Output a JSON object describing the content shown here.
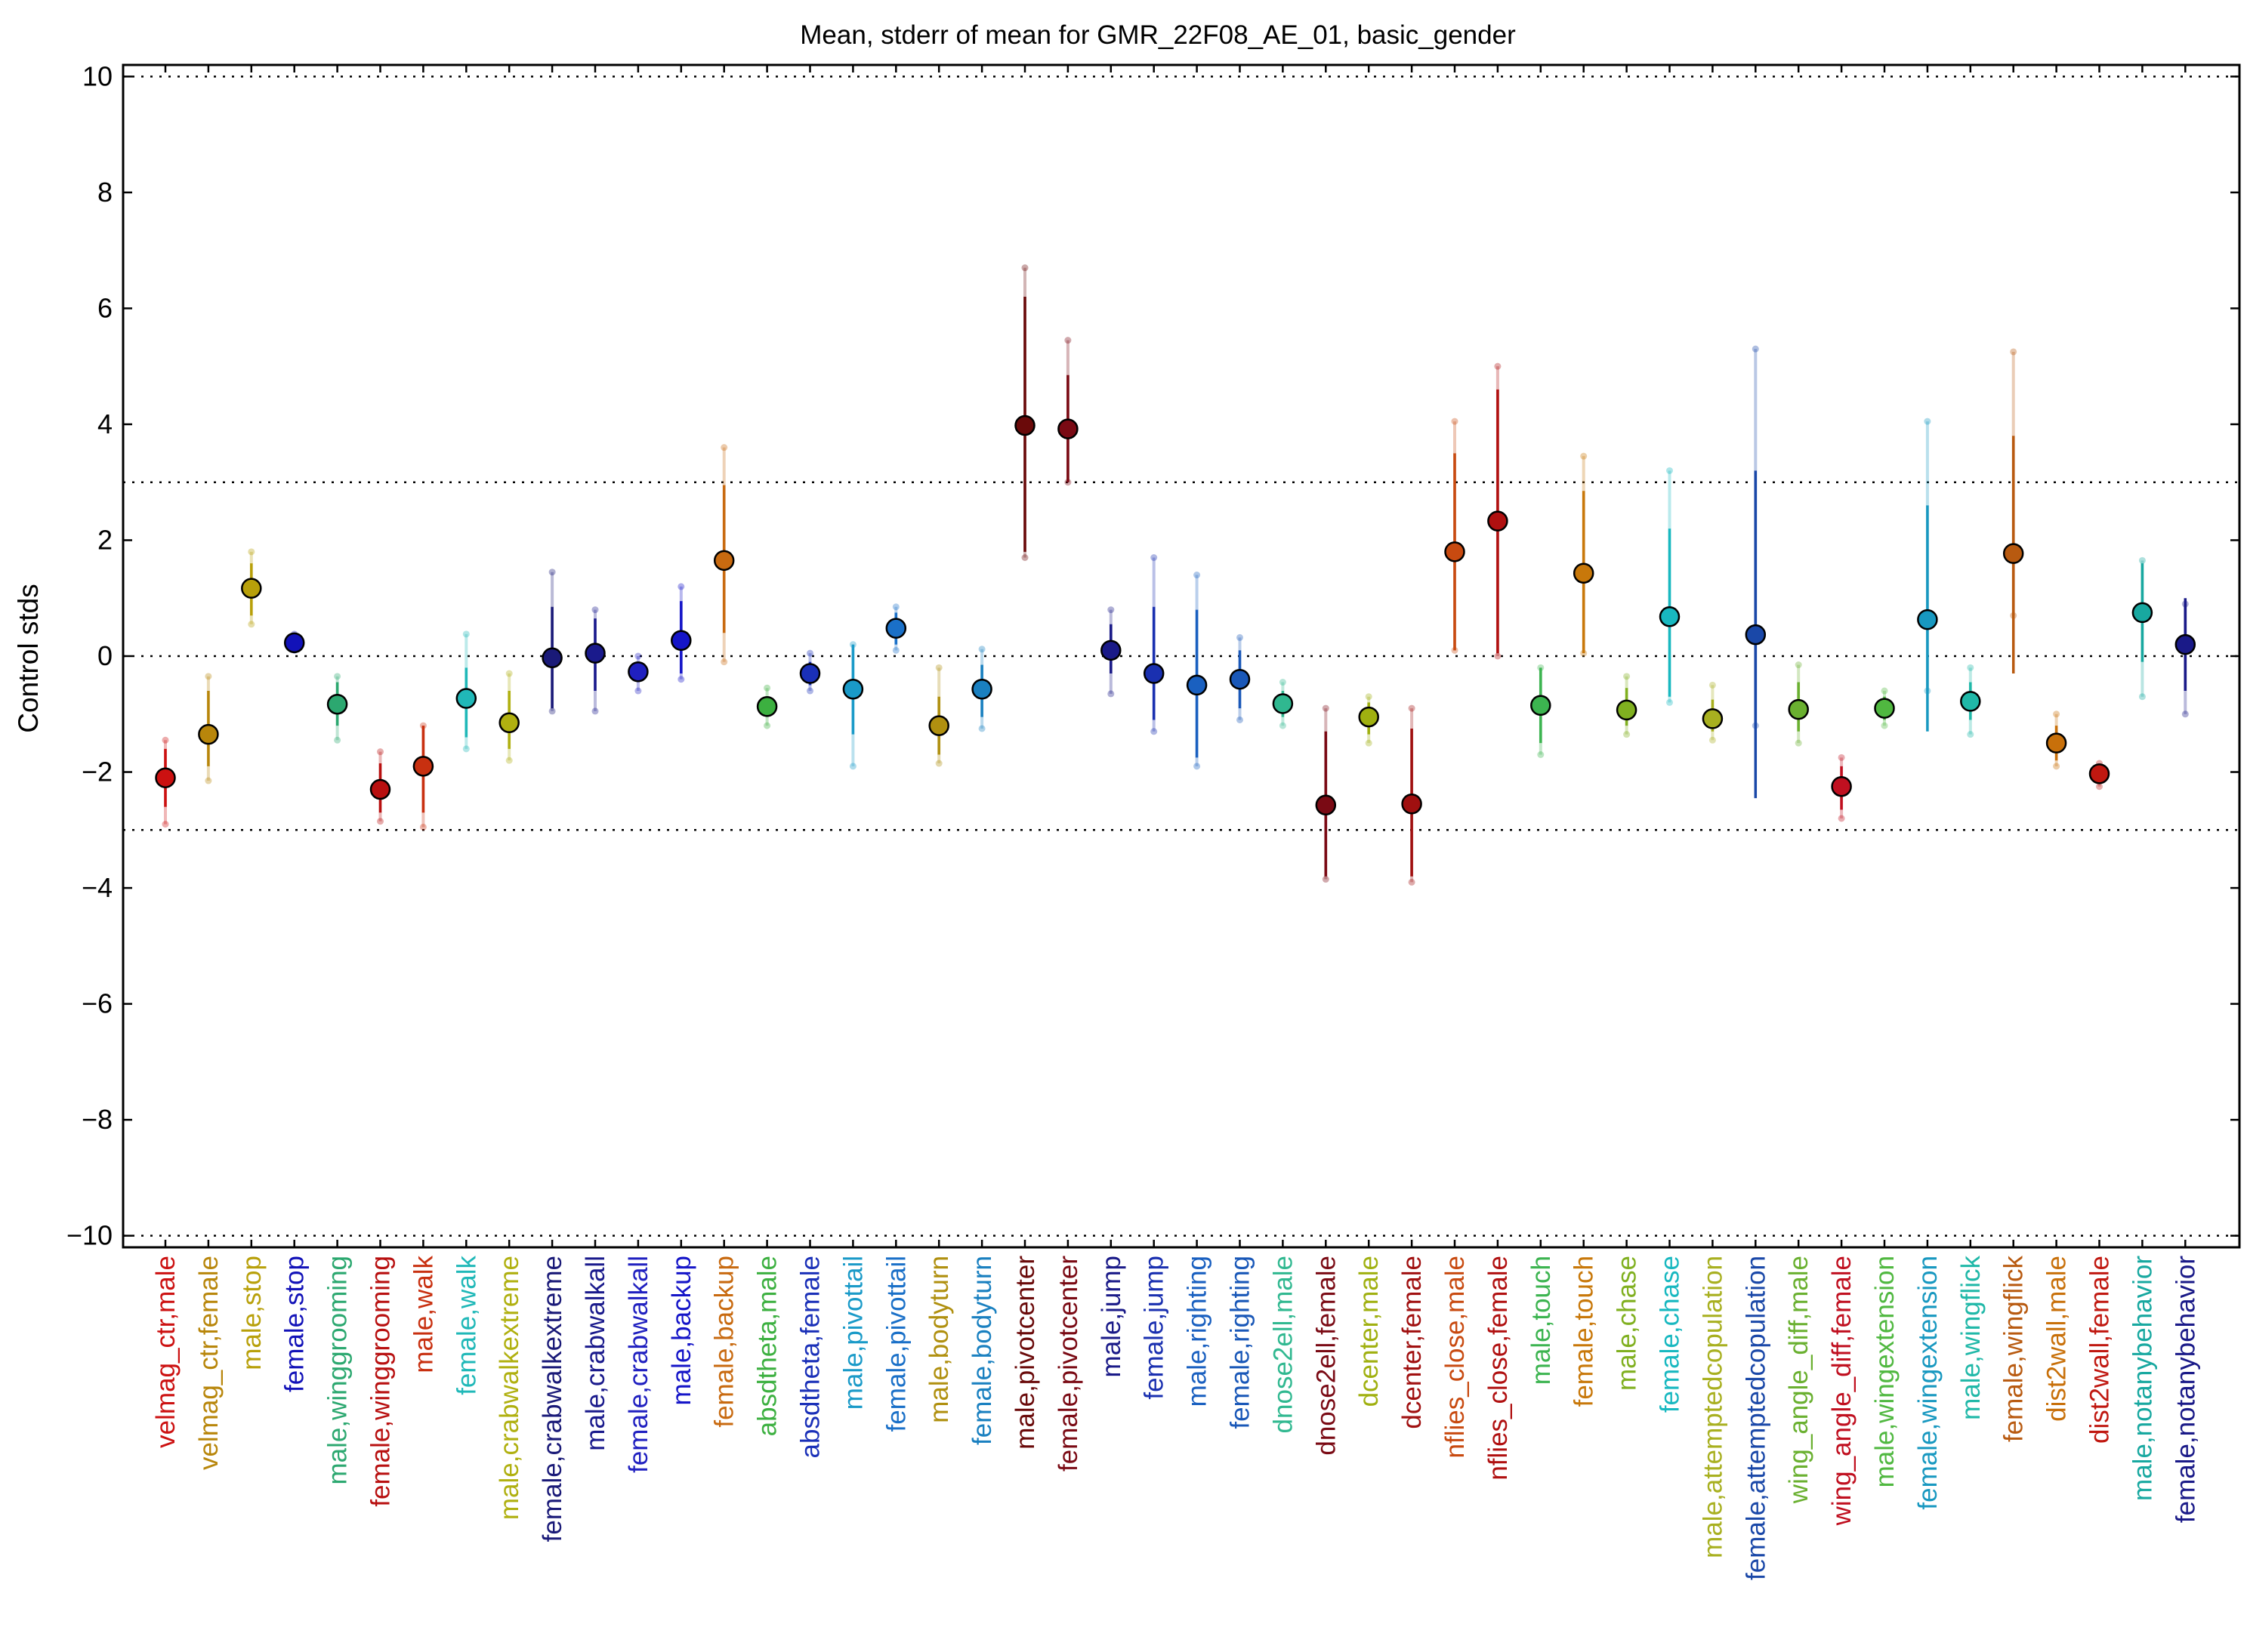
{
  "chart_data": {
    "type": "scatter",
    "title": "Mean, stderr of mean for GMR_22F08_AE_01, basic_gender",
    "xlabel": "",
    "ylabel": "Control stds",
    "ylim": [
      -10.2,
      10.2
    ],
    "yticks": [
      -10,
      -8,
      -6,
      -4,
      -2,
      0,
      2,
      4,
      6,
      8,
      10
    ],
    "ytick_labels": [
      "−10",
      "−8",
      "−6",
      "−4",
      "−2",
      "0",
      "2",
      "4",
      "6",
      "8",
      "10"
    ],
    "reference_lines": [
      10,
      3,
      0,
      -3,
      -10
    ],
    "points": [
      {
        "label": "velmag_ctr,male",
        "mean": -2.1,
        "se_low": -2.6,
        "se_high": -1.6,
        "low": -2.9,
        "high": -1.45,
        "color": "#cc1111"
      },
      {
        "label": "velmag_ctr,female",
        "mean": -1.35,
        "se_low": -1.9,
        "se_high": -0.6,
        "low": -2.15,
        "high": -0.35,
        "color": "#b8860b"
      },
      {
        "label": "male,stop",
        "mean": 1.17,
        "se_low": 0.7,
        "se_high": 1.6,
        "low": 0.55,
        "high": 1.8,
        "color": "#b8a00a"
      },
      {
        "label": "female,stop",
        "mean": 0.23,
        "se_low": 0.15,
        "se_high": 0.32,
        "low": 0.1,
        "high": 0.38,
        "color": "#1212b8"
      },
      {
        "label": "male,winggrooming",
        "mean": -0.83,
        "se_low": -1.2,
        "se_high": -0.45,
        "low": -1.45,
        "high": -0.35,
        "color": "#2ca870"
      },
      {
        "label": "female,winggrooming",
        "mean": -2.3,
        "se_low": -2.7,
        "se_high": -1.85,
        "low": -2.85,
        "high": -1.65,
        "color": "#b81010"
      },
      {
        "label": "male,walk",
        "mean": -1.9,
        "se_low": -2.7,
        "se_high": -1.2,
        "low": -2.95,
        "high": -1.2,
        "color": "#c83010"
      },
      {
        "label": "female,walk",
        "mean": -0.73,
        "se_low": -1.4,
        "se_high": -0.2,
        "low": -1.6,
        "high": 0.38,
        "color": "#20b8b8"
      },
      {
        "label": "male,crabwalkextreme",
        "mean": -1.15,
        "se_low": -1.6,
        "se_high": -0.6,
        "low": -1.8,
        "high": -0.3,
        "color": "#b0b010"
      },
      {
        "label": "female,crabwalkextreme",
        "mean": -0.03,
        "se_low": -0.9,
        "se_high": 0.85,
        "low": -0.95,
        "high": 1.45,
        "color": "#1a1a78"
      },
      {
        "label": "male,crabwalkall",
        "mean": 0.05,
        "se_low": -0.6,
        "se_high": 0.65,
        "low": -0.95,
        "high": 0.8,
        "color": "#1a1a8c"
      },
      {
        "label": "female,crabwalkall",
        "mean": -0.27,
        "se_low": -0.45,
        "se_high": -0.1,
        "low": -0.6,
        "high": 0.0,
        "color": "#2020c0"
      },
      {
        "label": "male,backup",
        "mean": 0.27,
        "se_low": -0.3,
        "se_high": 0.95,
        "low": -0.4,
        "high": 1.2,
        "color": "#1515c8"
      },
      {
        "label": "female,backup",
        "mean": 1.65,
        "se_low": 0.4,
        "se_high": 2.95,
        "low": -0.1,
        "high": 3.6,
        "color": "#c86a10"
      },
      {
        "label": "absdtheta,male",
        "mean": -0.87,
        "se_low": -1.05,
        "se_high": -0.7,
        "low": -1.2,
        "high": -0.55,
        "color": "#3cb040"
      },
      {
        "label": "absdtheta,female",
        "mean": -0.3,
        "se_low": -0.5,
        "se_high": -0.1,
        "low": -0.6,
        "high": 0.05,
        "color": "#1a30b8"
      },
      {
        "label": "male,pivottail",
        "mean": -0.57,
        "se_low": -1.35,
        "se_high": 0.2,
        "low": -1.9,
        "high": 0.2,
        "color": "#1a9ac8"
      },
      {
        "label": "female,pivottail",
        "mean": 0.48,
        "se_low": 0.2,
        "se_high": 0.75,
        "low": 0.1,
        "high": 0.85,
        "color": "#1a70c8"
      },
      {
        "label": "male,bodyturn",
        "mean": -1.2,
        "se_low": -1.7,
        "se_high": -0.7,
        "low": -1.85,
        "high": -0.2,
        "color": "#b09010"
      },
      {
        "label": "female,bodyturn",
        "mean": -0.57,
        "se_low": -1.05,
        "se_high": -0.15,
        "low": -1.25,
        "high": 0.12,
        "color": "#1a80c0"
      },
      {
        "label": "male,pivotcenter",
        "mean": 3.98,
        "se_low": 1.8,
        "se_high": 6.2,
        "low": 1.7,
        "high": 6.7,
        "color": "#6a0a0a"
      },
      {
        "label": "female,pivotcenter",
        "mean": 3.92,
        "se_low": 3.0,
        "se_high": 4.85,
        "low": 3.0,
        "high": 5.45,
        "color": "#7a0a14"
      },
      {
        "label": "male,jump",
        "mean": 0.1,
        "se_low": -0.3,
        "se_high": 0.55,
        "low": -0.65,
        "high": 0.8,
        "color": "#1a1a88"
      },
      {
        "label": "female,jump",
        "mean": -0.3,
        "se_low": -1.1,
        "se_high": 0.85,
        "low": -1.3,
        "high": 1.7,
        "color": "#1a30b0"
      },
      {
        "label": "male,righting",
        "mean": -0.5,
        "se_low": -1.75,
        "se_high": 0.8,
        "low": -1.9,
        "high": 1.4,
        "color": "#1a60c0"
      },
      {
        "label": "female,righting",
        "mean": -0.4,
        "se_low": -0.9,
        "se_high": 0.1,
        "low": -1.1,
        "high": 0.32,
        "color": "#1a58b8"
      },
      {
        "label": "dnose2ell,male",
        "mean": -0.82,
        "se_low": -1.05,
        "se_high": -0.6,
        "low": -1.2,
        "high": -0.45,
        "color": "#30b890"
      },
      {
        "label": "dnose2ell,female",
        "mean": -2.57,
        "se_low": -3.8,
        "se_high": -1.3,
        "low": -3.85,
        "high": -0.9,
        "color": "#7a0a14"
      },
      {
        "label": "dcenter,male",
        "mean": -1.05,
        "se_low": -1.35,
        "se_high": -0.8,
        "low": -1.5,
        "high": -0.7,
        "color": "#a0b010"
      },
      {
        "label": "dcenter,female",
        "mean": -2.55,
        "se_low": -3.8,
        "se_high": -1.25,
        "low": -3.9,
        "high": -0.9,
        "color": "#a01010"
      },
      {
        "label": "nflies_close,male",
        "mean": 1.8,
        "se_low": 0.1,
        "se_high": 3.5,
        "low": 0.1,
        "high": 4.05,
        "color": "#c84a10"
      },
      {
        "label": "nflies_close,female",
        "mean": 2.33,
        "se_low": 0.05,
        "se_high": 4.6,
        "low": 0.0,
        "high": 5.0,
        "color": "#b01010"
      },
      {
        "label": "male,touch",
        "mean": -0.85,
        "se_low": -1.5,
        "se_high": -0.2,
        "low": -1.7,
        "high": -0.2,
        "color": "#3cb450"
      },
      {
        "label": "female,touch",
        "mean": 1.43,
        "se_low": 0.05,
        "se_high": 2.85,
        "low": 0.05,
        "high": 3.45,
        "color": "#c8780a"
      },
      {
        "label": "male,chase",
        "mean": -0.93,
        "se_low": -1.2,
        "se_high": -0.55,
        "low": -1.35,
        "high": -0.35,
        "color": "#80b020"
      },
      {
        "label": "female,chase",
        "mean": 0.68,
        "se_low": -0.7,
        "se_high": 2.2,
        "low": -0.8,
        "high": 3.2,
        "color": "#18b8c0"
      },
      {
        "label": "male,attemptedcopulation",
        "mean": -1.08,
        "se_low": -1.3,
        "se_high": -0.75,
        "low": -1.45,
        "high": -0.5,
        "color": "#a8b020"
      },
      {
        "label": "female,attemptedcopulation",
        "mean": 0.37,
        "se_low": -2.45,
        "se_high": 3.2,
        "low": -1.2,
        "high": 5.3,
        "color": "#1a48a8"
      },
      {
        "label": "wing_angle_diff,male",
        "mean": -0.92,
        "se_low": -1.3,
        "se_high": -0.45,
        "low": -1.5,
        "high": -0.15,
        "color": "#6ab030"
      },
      {
        "label": "wing_angle_diff,female",
        "mean": -2.25,
        "se_low": -2.65,
        "se_high": -1.9,
        "low": -2.8,
        "high": -1.75,
        "color": "#c01020"
      },
      {
        "label": "male,wingextension",
        "mean": -0.9,
        "se_low": -1.1,
        "se_high": -0.7,
        "low": -1.2,
        "high": -0.6,
        "color": "#50b840"
      },
      {
        "label": "female,wingextension",
        "mean": 0.63,
        "se_low": -1.3,
        "se_high": 2.6,
        "low": -0.6,
        "high": 4.05,
        "color": "#1898c0"
      },
      {
        "label": "male,wingflick",
        "mean": -0.78,
        "se_low": -1.1,
        "se_high": -0.45,
        "low": -1.35,
        "high": -0.2,
        "color": "#20b8a8"
      },
      {
        "label": "female,wingflick",
        "mean": 1.77,
        "se_low": -0.3,
        "se_high": 3.8,
        "low": 0.7,
        "high": 5.25,
        "color": "#b85a10"
      },
      {
        "label": "dist2wall,male",
        "mean": -1.5,
        "se_low": -1.8,
        "se_high": -1.2,
        "low": -1.9,
        "high": -1.0,
        "color": "#c8700a"
      },
      {
        "label": "dist2wall,female",
        "mean": -2.03,
        "se_low": -2.15,
        "se_high": -1.9,
        "low": -2.25,
        "high": -1.85,
        "color": "#c01810"
      },
      {
        "label": "male,notanybehavior",
        "mean": 0.75,
        "se_low": -0.1,
        "se_high": 1.6,
        "low": -0.7,
        "high": 1.65,
        "color": "#18a8a0"
      },
      {
        "label": "female,notanybehavior",
        "mean": 0.2,
        "se_low": -0.6,
        "se_high": 1.0,
        "low": -1.0,
        "high": 0.9,
        "color": "#1a1a88"
      }
    ]
  }
}
